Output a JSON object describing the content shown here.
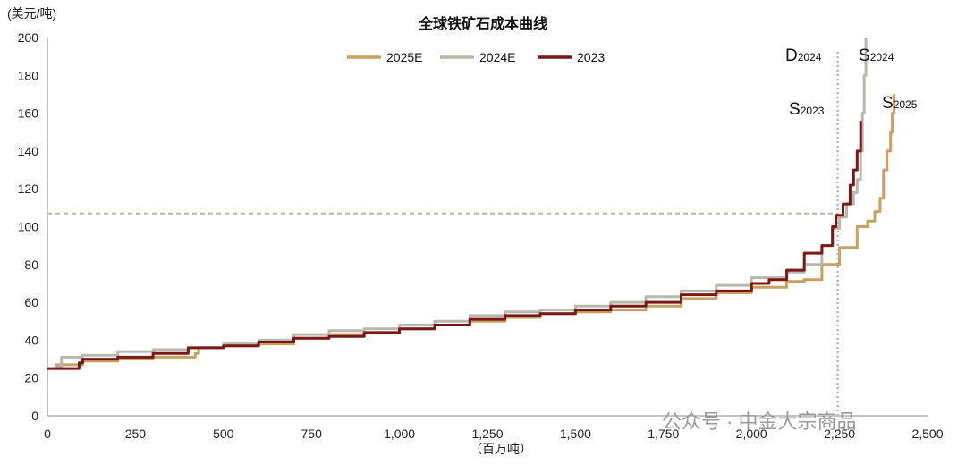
{
  "watermark": "公众号 · 中金大宗商品",
  "chart_data": {
    "type": "line",
    "title": "全球铁矿石成本曲线",
    "ylabel": "(美元/吨)",
    "xlabel": "（百万吨）",
    "xlim": [
      0,
      2500
    ],
    "ylim": [
      0,
      200
    ],
    "x_ticks": [
      0,
      250,
      500,
      750,
      1000,
      1250,
      1500,
      1750,
      2000,
      2250,
      2500
    ],
    "x_tick_labels": [
      "0",
      "250",
      "500",
      "750",
      "1,000",
      "1,250",
      "1,500",
      "1,750",
      "2,000",
      "2,250",
      "2,500"
    ],
    "y_ticks": [
      0,
      20,
      40,
      60,
      80,
      100,
      120,
      140,
      160,
      180,
      200
    ],
    "y_tick_labels": [
      "0",
      "20",
      "40",
      "60",
      "80",
      "100",
      "120",
      "140",
      "160",
      "180",
      "200"
    ],
    "legend_position": "top-center",
    "series": [
      {
        "name": "2025E",
        "color": "#c8a062",
        "points": [
          [
            20,
            27
          ],
          [
            100,
            29
          ],
          [
            200,
            30
          ],
          [
            300,
            31
          ],
          [
            420,
            33
          ],
          [
            430,
            36
          ],
          [
            500,
            37
          ],
          [
            600,
            38
          ],
          [
            700,
            41
          ],
          [
            800,
            43
          ],
          [
            900,
            44
          ],
          [
            1000,
            46
          ],
          [
            1100,
            48
          ],
          [
            1200,
            50
          ],
          [
            1300,
            52
          ],
          [
            1400,
            54
          ],
          [
            1500,
            55
          ],
          [
            1600,
            56
          ],
          [
            1700,
            58
          ],
          [
            1800,
            62
          ],
          [
            1900,
            65
          ],
          [
            2000,
            68
          ],
          [
            2100,
            71
          ],
          [
            2150,
            72
          ],
          [
            2200,
            80
          ],
          [
            2250,
            89
          ],
          [
            2300,
            100
          ],
          [
            2330,
            103
          ],
          [
            2350,
            108
          ],
          [
            2365,
            115
          ],
          [
            2375,
            130
          ],
          [
            2385,
            140
          ],
          [
            2395,
            150
          ],
          [
            2400,
            160
          ],
          [
            2405,
            170
          ]
        ]
      },
      {
        "name": "2024E",
        "color": "#b8b8ac",
        "points": [
          [
            20,
            26
          ],
          [
            40,
            31
          ],
          [
            100,
            32
          ],
          [
            200,
            34
          ],
          [
            300,
            35
          ],
          [
            400,
            36
          ],
          [
            500,
            38
          ],
          [
            600,
            40
          ],
          [
            700,
            43
          ],
          [
            800,
            45
          ],
          [
            900,
            46
          ],
          [
            1000,
            48
          ],
          [
            1100,
            50
          ],
          [
            1200,
            53
          ],
          [
            1300,
            55
          ],
          [
            1400,
            56
          ],
          [
            1500,
            58
          ],
          [
            1600,
            60
          ],
          [
            1700,
            63
          ],
          [
            1800,
            66
          ],
          [
            1900,
            69
          ],
          [
            2000,
            73
          ],
          [
            2100,
            76
          ],
          [
            2150,
            80
          ],
          [
            2200,
            90
          ],
          [
            2230,
            99
          ],
          [
            2250,
            105
          ],
          [
            2270,
            112
          ],
          [
            2290,
            118
          ],
          [
            2300,
            125
          ],
          [
            2310,
            140
          ],
          [
            2315,
            160
          ],
          [
            2320,
            180
          ],
          [
            2325,
            200
          ]
        ]
      },
      {
        "name": "2023",
        "color": "#7a1818",
        "points": [
          [
            0,
            25
          ],
          [
            90,
            28
          ],
          [
            100,
            30
          ],
          [
            200,
            31
          ],
          [
            300,
            33
          ],
          [
            400,
            36
          ],
          [
            500,
            37
          ],
          [
            600,
            39
          ],
          [
            700,
            41
          ],
          [
            800,
            42
          ],
          [
            900,
            44
          ],
          [
            1000,
            46
          ],
          [
            1100,
            48
          ],
          [
            1200,
            51
          ],
          [
            1300,
            53
          ],
          [
            1400,
            54
          ],
          [
            1500,
            56
          ],
          [
            1600,
            58
          ],
          [
            1700,
            60
          ],
          [
            1800,
            64
          ],
          [
            1900,
            66
          ],
          [
            2000,
            70
          ],
          [
            2050,
            72
          ],
          [
            2100,
            77
          ],
          [
            2150,
            86
          ],
          [
            2200,
            90
          ],
          [
            2230,
            100
          ],
          [
            2240,
            106
          ],
          [
            2260,
            112
          ],
          [
            2280,
            122
          ],
          [
            2290,
            130
          ],
          [
            2300,
            140
          ],
          [
            2310,
            156
          ]
        ]
      }
    ],
    "reference_lines": {
      "horizontal_y": 107,
      "vertical_x": 2245
    },
    "annotations": [
      {
        "id": "d2024",
        "big": "D",
        "small": "2024"
      },
      {
        "id": "s2024",
        "big": "S",
        "small": "2024"
      },
      {
        "id": "s2023",
        "big": "S",
        "small": "2023"
      },
      {
        "id": "s2025",
        "big": "S",
        "small": "2025"
      }
    ]
  }
}
